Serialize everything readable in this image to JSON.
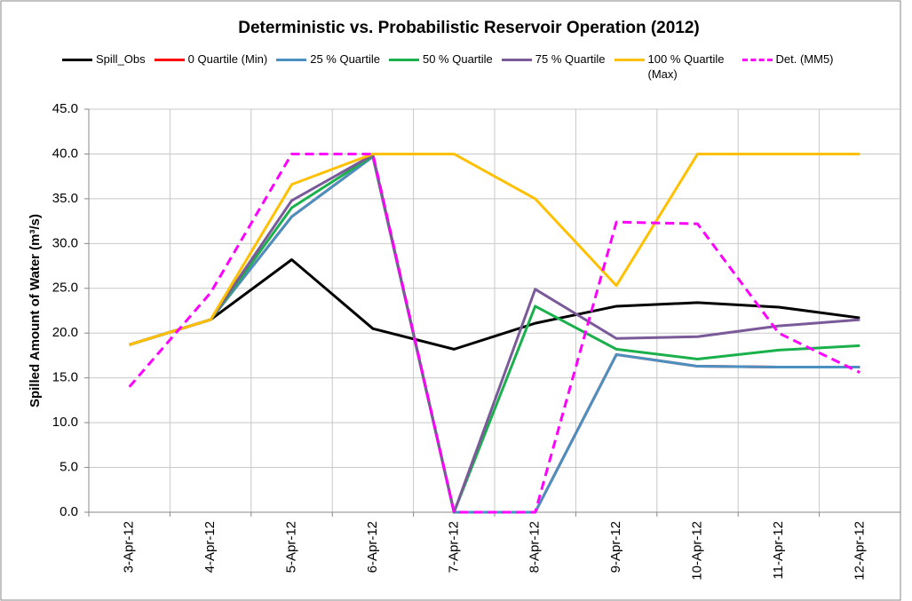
{
  "chart_data": {
    "type": "line",
    "title": "Deterministic vs. Probabilistic Reservoir Operation (2012)",
    "y_label": "Spilled Amount of Water (m³/s)",
    "categories": [
      "3-Apr-12",
      "4-Apr-12",
      "5-Apr-12",
      "6-Apr-12",
      "7-Apr-12",
      "8-Apr-12",
      "9-Apr-12",
      "10-Apr-12",
      "11-Apr-12",
      "12-Apr-12"
    ],
    "series": [
      {
        "name": "Spill_Obs",
        "color": "#000000",
        "values": [
          18.7,
          21.5,
          28.2,
          20.5,
          18.2,
          21.1,
          23.0,
          23.4,
          22.9,
          21.7
        ]
      },
      {
        "name": "0 Quartile (Min)",
        "color": "#ff0000",
        "values": [
          18.7,
          21.5,
          33.0,
          39.7,
          0,
          0,
          17.6,
          16.3,
          16.2,
          16.2
        ]
      },
      {
        "name": "25 % Quartile",
        "color": "#4a90c0",
        "values": [
          18.7,
          21.5,
          33.0,
          39.7,
          0,
          0,
          17.6,
          16.3,
          16.2,
          16.2
        ]
      },
      {
        "name": "50 % Quartile",
        "color": "#1ab04c",
        "values": [
          18.7,
          21.5,
          34.0,
          39.8,
          0,
          23.0,
          18.2,
          17.1,
          18.1,
          18.6
        ]
      },
      {
        "name": "75 % Quartile",
        "color": "#7a5a98",
        "values": [
          18.7,
          21.5,
          34.8,
          39.9,
          0,
          24.9,
          19.4,
          19.6,
          20.8,
          21.5
        ]
      },
      {
        "name": "100 % Quartile (Max)",
        "color": "#ffc000",
        "values": [
          18.7,
          21.5,
          36.6,
          40.0,
          40.0,
          35.0,
          25.3,
          40.0,
          40.0,
          40.0
        ]
      },
      {
        "name": "Det. (MM5)",
        "color": "#ff00ff",
        "dashed": true,
        "values": [
          14.0,
          24.5,
          40.0,
          40.0,
          0,
          0,
          32.4,
          32.2,
          20.0,
          15.6
        ]
      }
    ],
    "ylim": [
      0,
      45
    ],
    "yticks": [
      {
        "value": 0,
        "label": "0.0"
      },
      {
        "value": 5,
        "label": "5.0"
      },
      {
        "value": 10,
        "label": "10.0"
      },
      {
        "value": 15,
        "label": "15.0"
      },
      {
        "value": 20,
        "label": "20.0"
      },
      {
        "value": 25,
        "label": "25.0"
      },
      {
        "value": 30,
        "label": "30.0"
      },
      {
        "value": 35,
        "label": "35.0"
      },
      {
        "value": 40,
        "label": "40.0"
      },
      {
        "value": 45,
        "label": "45.0"
      }
    ],
    "grid": true
  }
}
